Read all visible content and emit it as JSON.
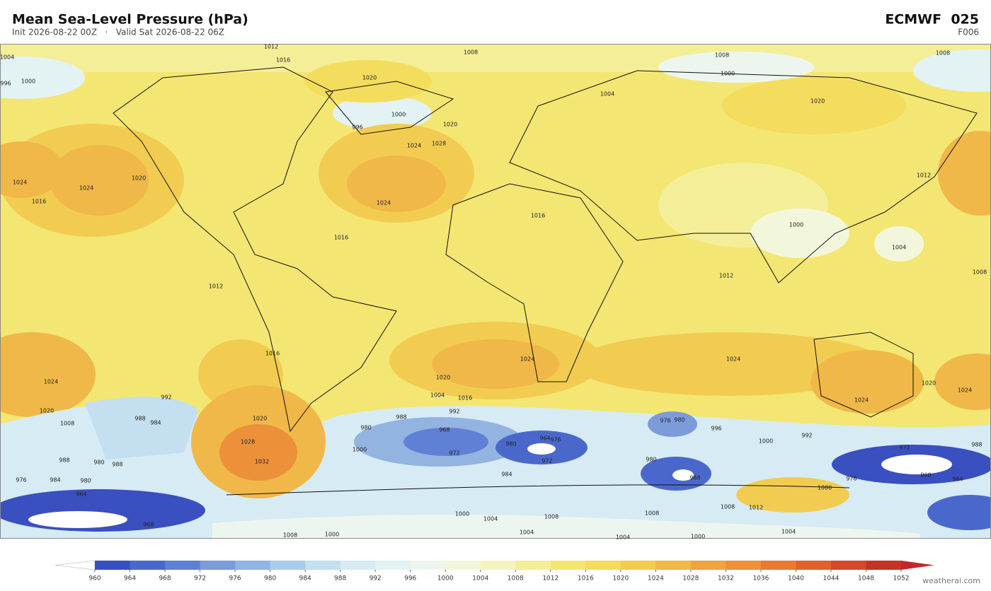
{
  "header": {
    "title": "Mean Sea-Level Pressure  (hPa)",
    "subtitle": "Init 2026-08-22 00Z   ·   Valid Sat 2026-08-22 06Z",
    "model": "ECMWF  025",
    "forecast_hour": "F006"
  },
  "map": {
    "contour_labels": [
      1012,
      1008,
      1008,
      1008,
      1004,
      996,
      1000,
      1016,
      1020,
      1000,
      996,
      1020,
      1028,
      1024,
      1024,
      1024,
      1024,
      1020,
      1016,
      1016,
      1004,
      1020,
      1000,
      1012,
      1004,
      1008,
      1012,
      1012,
      1016,
      1000,
      1024,
      1024,
      1024,
      1020,
      1024,
      1024,
      1020,
      1008,
      1016,
      1020,
      1028,
      1032,
      1020,
      1016,
      1004,
      992,
      988,
      980,
      968,
      972,
      1000,
      984,
      980,
      964,
      976,
      972,
      976,
      980,
      996,
      1000,
      992,
      972,
      960,
      988,
      964,
      968,
      980,
      1008,
      1008,
      1012,
      1000,
      976,
      1004,
      1000,
      1004,
      1008,
      1004,
      1004,
      1000,
      1000,
      1008,
      992,
      988,
      984,
      980,
      988,
      988,
      980,
      984,
      964,
      968,
      976
    ]
  },
  "colorbar": {
    "ticks": [
      960,
      964,
      968,
      972,
      976,
      980,
      984,
      988,
      992,
      996,
      1000,
      1004,
      1008,
      1012,
      1016,
      1020,
      1024,
      1028,
      1032,
      1036,
      1040,
      1044,
      1048,
      1052
    ],
    "colors": [
      "#3a4fc0",
      "#4a68cc",
      "#5f80d4",
      "#7b9bd9",
      "#93b3e0",
      "#aacbea",
      "#c3dff0",
      "#d6ebf3",
      "#e3f2f2",
      "#edf6ee",
      "#f2f7dc",
      "#f4f4c0",
      "#f4ee98",
      "#f4e673",
      "#f4dc5c",
      "#f2cc50",
      "#f0b848",
      "#eea440",
      "#ec903a",
      "#e87a34",
      "#e0622e",
      "#d34a2a",
      "#c33326"
    ],
    "under_color": "#ffffff",
    "over_color": "#c0282a"
  },
  "footer": {
    "credit": "weatherai.com"
  }
}
